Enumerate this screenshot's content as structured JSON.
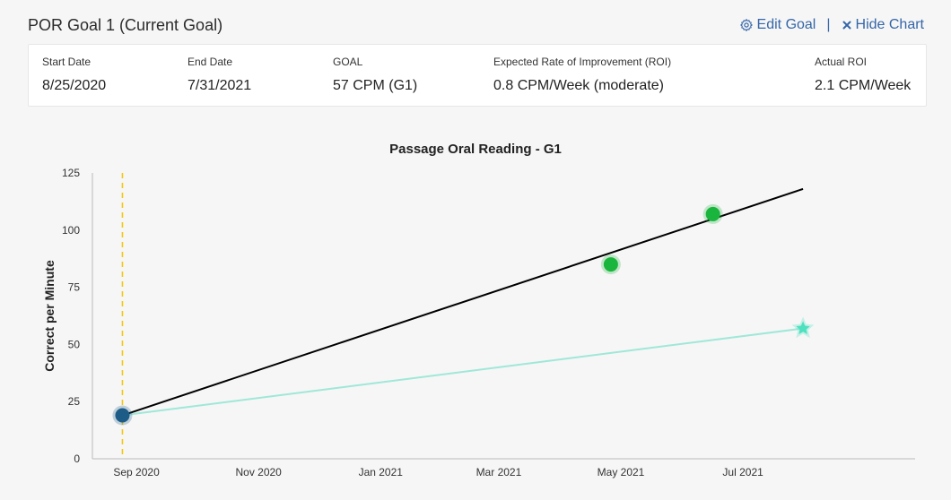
{
  "header": {
    "title": "POR Goal 1 (Current Goal)",
    "edit_label": "Edit Goal",
    "separator": "|",
    "hide_label": "Hide Chart"
  },
  "goal_info": {
    "start_date": {
      "label": "Start Date",
      "value": "8/25/2020"
    },
    "end_date": {
      "label": "End Date",
      "value": "7/31/2021"
    },
    "goal": {
      "label": "GOAL",
      "value": "57 CPM (G1)"
    },
    "expected_roi": {
      "label": "Expected Rate of Improvement (ROI)",
      "value": "0.8 CPM/Week (moderate)"
    },
    "actual_roi": {
      "label": "Actual ROI",
      "value": "2.1 CPM/Week"
    }
  },
  "chart_data": {
    "type": "line",
    "title": "Passage Oral Reading - G1",
    "ylabel": "Correct per Minute",
    "xlabel": "",
    "ylim": [
      0,
      125
    ],
    "yticks": [
      0,
      25,
      50,
      75,
      100,
      125
    ],
    "xlim": [
      "2020-08-10",
      "2021-09-25"
    ],
    "xticks": [
      {
        "date": "2020-09-01",
        "label": "Sep 2020"
      },
      {
        "date": "2020-11-01",
        "label": "Nov 2020"
      },
      {
        "date": "2021-01-01",
        "label": "Jan 2021"
      },
      {
        "date": "2021-03-01",
        "label": "Mar 2021"
      },
      {
        "date": "2021-05-01",
        "label": "May 2021"
      },
      {
        "date": "2021-07-01",
        "label": "Jul 2021"
      }
    ],
    "start_marker_date": "2020-08-25",
    "baseline_point": {
      "date": "2020-08-25",
      "value": 19
    },
    "assessment_points": [
      {
        "date": "2021-04-26",
        "value": 85
      },
      {
        "date": "2021-06-16",
        "value": 107
      }
    ],
    "goal_point": {
      "date": "2021-07-31",
      "value": 57
    },
    "trend_line": [
      {
        "date": "2020-08-25",
        "value": 19
      },
      {
        "date": "2021-07-31",
        "value": 118
      }
    ],
    "aimline": [
      {
        "date": "2020-08-25",
        "value": 19
      },
      {
        "date": "2021-07-31",
        "value": 57
      }
    ],
    "colors": {
      "trend": "#000000",
      "aimline": "#9fe8d8",
      "baseline": "#1c5c86",
      "assessment": "#1ab53c",
      "goal_star": "#4fe0c0",
      "start_marker": "#f2c811",
      "axis": "#bbbbbb"
    }
  }
}
